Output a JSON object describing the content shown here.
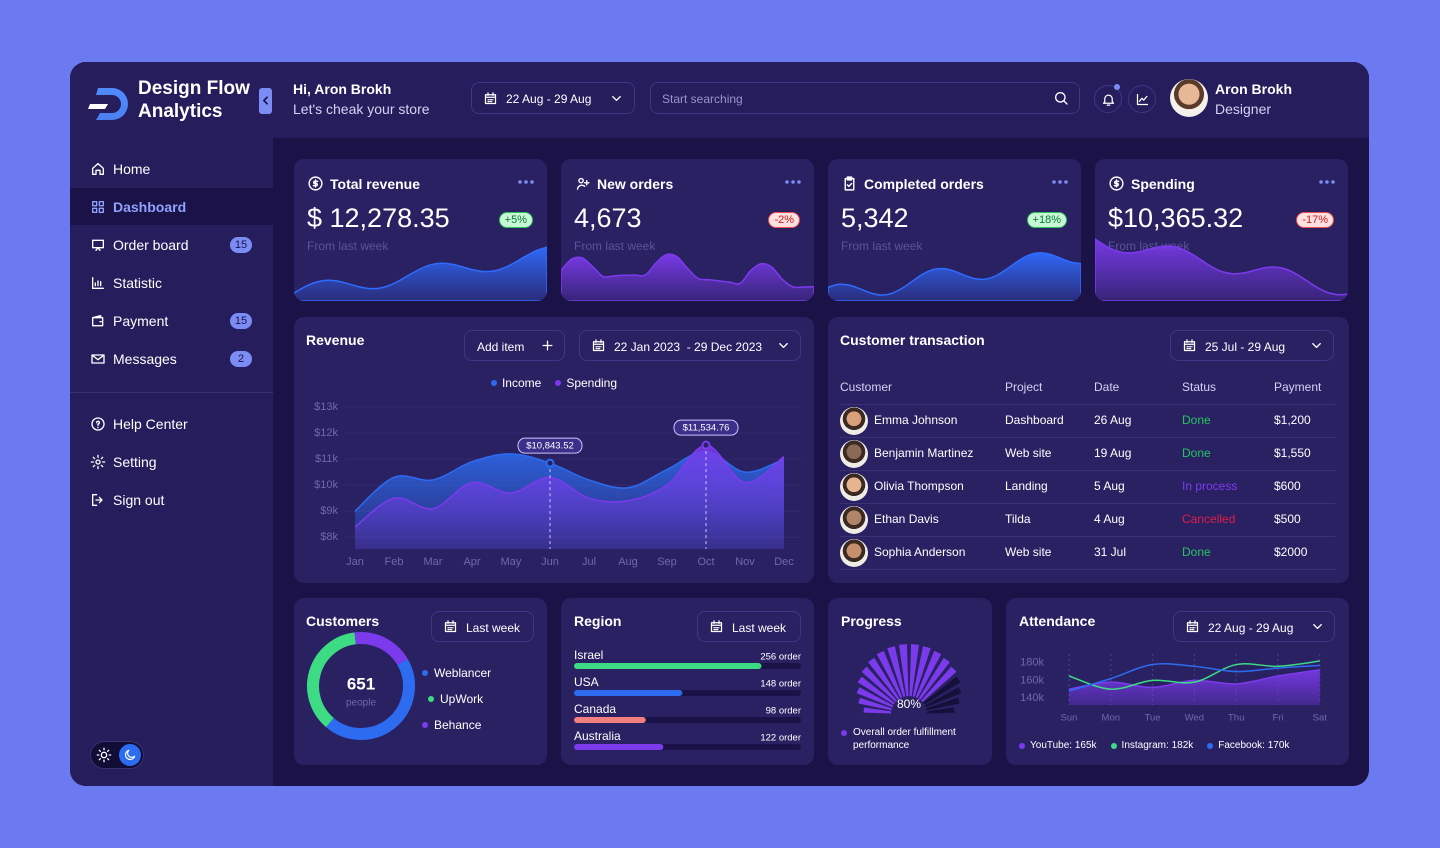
{
  "sidebar": {
    "brand": "Design Flow Analytics",
    "nav": [
      {
        "label": "Home"
      },
      {
        "label": "Dashboard",
        "active": true
      },
      {
        "label": "Order board",
        "badge": 15
      },
      {
        "label": "Statistic"
      },
      {
        "label": "Payment",
        "badge": 15
      },
      {
        "label": "Messages",
        "badge": 2
      }
    ],
    "secondary_nav": [
      {
        "label": "Help Center"
      },
      {
        "label": "Setting"
      },
      {
        "label": "Sign out"
      }
    ]
  },
  "header": {
    "greeting": "Hi, Aron Brokh",
    "subtitle": "Let's cheak your store",
    "date_range": "22 Aug - 29 Aug",
    "search_placeholder": "Start searching",
    "user_name": "Aron Brokh",
    "user_role": "Designer"
  },
  "stats": [
    {
      "title": "Total revenue",
      "value": "$ 12,278.35",
      "change": "+5%",
      "note": "From last week",
      "color": "#2f6bff"
    },
    {
      "title": "New orders",
      "value": "4,673",
      "change": "-2%",
      "note": "From last week",
      "color": "#7c3aed"
    },
    {
      "title": "Completed orders",
      "value": "5,342",
      "change": "+18%",
      "note": "From last week",
      "color": "#2f6bff"
    },
    {
      "title": "Spending",
      "value": "$10,365.32",
      "change": "-17%",
      "note": "From last week",
      "color": "#7c3aed"
    }
  ],
  "revenue": {
    "title": "Revenue",
    "add_button": "Add item",
    "date_range": "22 Jan 2023  - 29 Dec 2023",
    "chart": {
      "type": "area",
      "categories": [
        "Jan",
        "Feb",
        "Mar",
        "Apr",
        "May",
        "Jun",
        "Jul",
        "Aug",
        "Sep",
        "Oct",
        "Nov",
        "Dec"
      ],
      "series": [
        {
          "name": "Income",
          "color": "#2d6cf0",
          "values": [
            9000,
            10300,
            10200,
            10900,
            11200,
            10843.52,
            10200,
            9900,
            10600,
            11300,
            10500,
            11000
          ],
          "value_labels": [
            null,
            null,
            null,
            null,
            null,
            "$10,843.52",
            null,
            null,
            null,
            null,
            null,
            null
          ]
        },
        {
          "name": "Spending",
          "color": "#7c3aed",
          "values": [
            8400,
            9500,
            9100,
            10100,
            9700,
            10300,
            9500,
            9400,
            10000,
            11534.76,
            10100,
            11100
          ],
          "value_labels": [
            null,
            null,
            null,
            null,
            null,
            null,
            null,
            null,
            null,
            "$11,534.76",
            null,
            null
          ]
        }
      ],
      "ylim": [
        7550,
        13000
      ],
      "yticks": [
        {
          "value": 8000,
          "label": "$8k"
        },
        {
          "value": 9000,
          "label": "$9k"
        },
        {
          "value": 10000,
          "label": "$10k"
        },
        {
          "value": 11000,
          "label": "$11k"
        },
        {
          "value": 12000,
          "label": "$12k"
        },
        {
          "value": 13000,
          "label": "$13k"
        }
      ],
      "grid": true
    }
  },
  "transactions": {
    "title": "Customer transaction",
    "date_range": "25 Jul - 29 Aug",
    "columns": [
      "Customer",
      "Project",
      "Date",
      "Status",
      "Payment"
    ],
    "rows": [
      [
        "Emma Johnson",
        "Dashboard",
        "26 Aug",
        "Done",
        "$1,200"
      ],
      [
        "Benjamin Martinez",
        "Web site",
        "19 Aug",
        "Done",
        "$1,550"
      ],
      [
        "Olivia Thompson",
        "Landing",
        "5 Aug",
        "In process",
        "$600"
      ],
      [
        "Ethan Davis",
        "Tilda",
        "4 Aug",
        "Cancelled",
        "$500"
      ],
      [
        "Sophia Anderson",
        "Web site",
        "31 Jul",
        "Done",
        "$2000"
      ]
    ],
    "status_colors": {
      "Done": "#22c55e",
      "In process": "#7c3aed",
      "Cancelled": "#e11d48"
    }
  },
  "customers": {
    "title": "Customers",
    "button": "Last week",
    "chart": {
      "type": "donut",
      "total": 651,
      "total_label": "people",
      "categories": [
        "Weblancer",
        "UpWork",
        "Behance"
      ],
      "values": [
        290,
        240,
        121
      ],
      "colors": [
        "#2d6cf0",
        "#3ddc84",
        "#7c3aed"
      ]
    }
  },
  "region": {
    "title": "Region",
    "button": "Last week",
    "chart": {
      "type": "bar",
      "categories": [
        "Israel",
        "USA",
        "Canada",
        "Australia"
      ],
      "values": [
        256,
        148,
        98,
        122
      ],
      "value_labels": [
        "256 order",
        "148 order",
        "98 order",
        "122 order"
      ],
      "colors": [
        "#3ddc84",
        "#2d6cf0",
        "#f08080",
        "#7c3aed"
      ],
      "xlim": [
        0,
        310
      ]
    }
  },
  "progress": {
    "title": "Progress",
    "caption": "Overall order fulfillment performance",
    "chart": {
      "type": "radial",
      "value": 80,
      "value_label": "80%",
      "ylim": [
        0,
        100
      ],
      "color": "#7c3aed"
    }
  },
  "attendance": {
    "title": "Attendance",
    "date_range": "22 Aug - 29 Aug",
    "chart": {
      "type": "line",
      "categories": [
        "Sun",
        "Mon",
        "Tue",
        "Wed",
        "Thu",
        "Fri",
        "Sat"
      ],
      "series": [
        {
          "name": "YouTube: 165k",
          "color": "#7c3aed",
          "area": true,
          "values": [
            150000,
            158000,
            152000,
            160000,
            156000,
            165000,
            172000
          ]
        },
        {
          "name": "Instagram: 182k",
          "color": "#3ddc84",
          "values": [
            165000,
            150000,
            160000,
            158000,
            178000,
            176000,
            182000
          ]
        },
        {
          "name": "Facebook: 170k",
          "color": "#2d6cf0",
          "values": [
            148000,
            162000,
            178000,
            176000,
            170000,
            174000,
            177000
          ]
        }
      ],
      "ylim": [
        132000,
        190000
      ],
      "yticks": [
        {
          "value": 140000,
          "label": "140k"
        },
        {
          "value": 160000,
          "label": "160k"
        },
        {
          "value": 180000,
          "label": "180k"
        }
      ]
    }
  }
}
